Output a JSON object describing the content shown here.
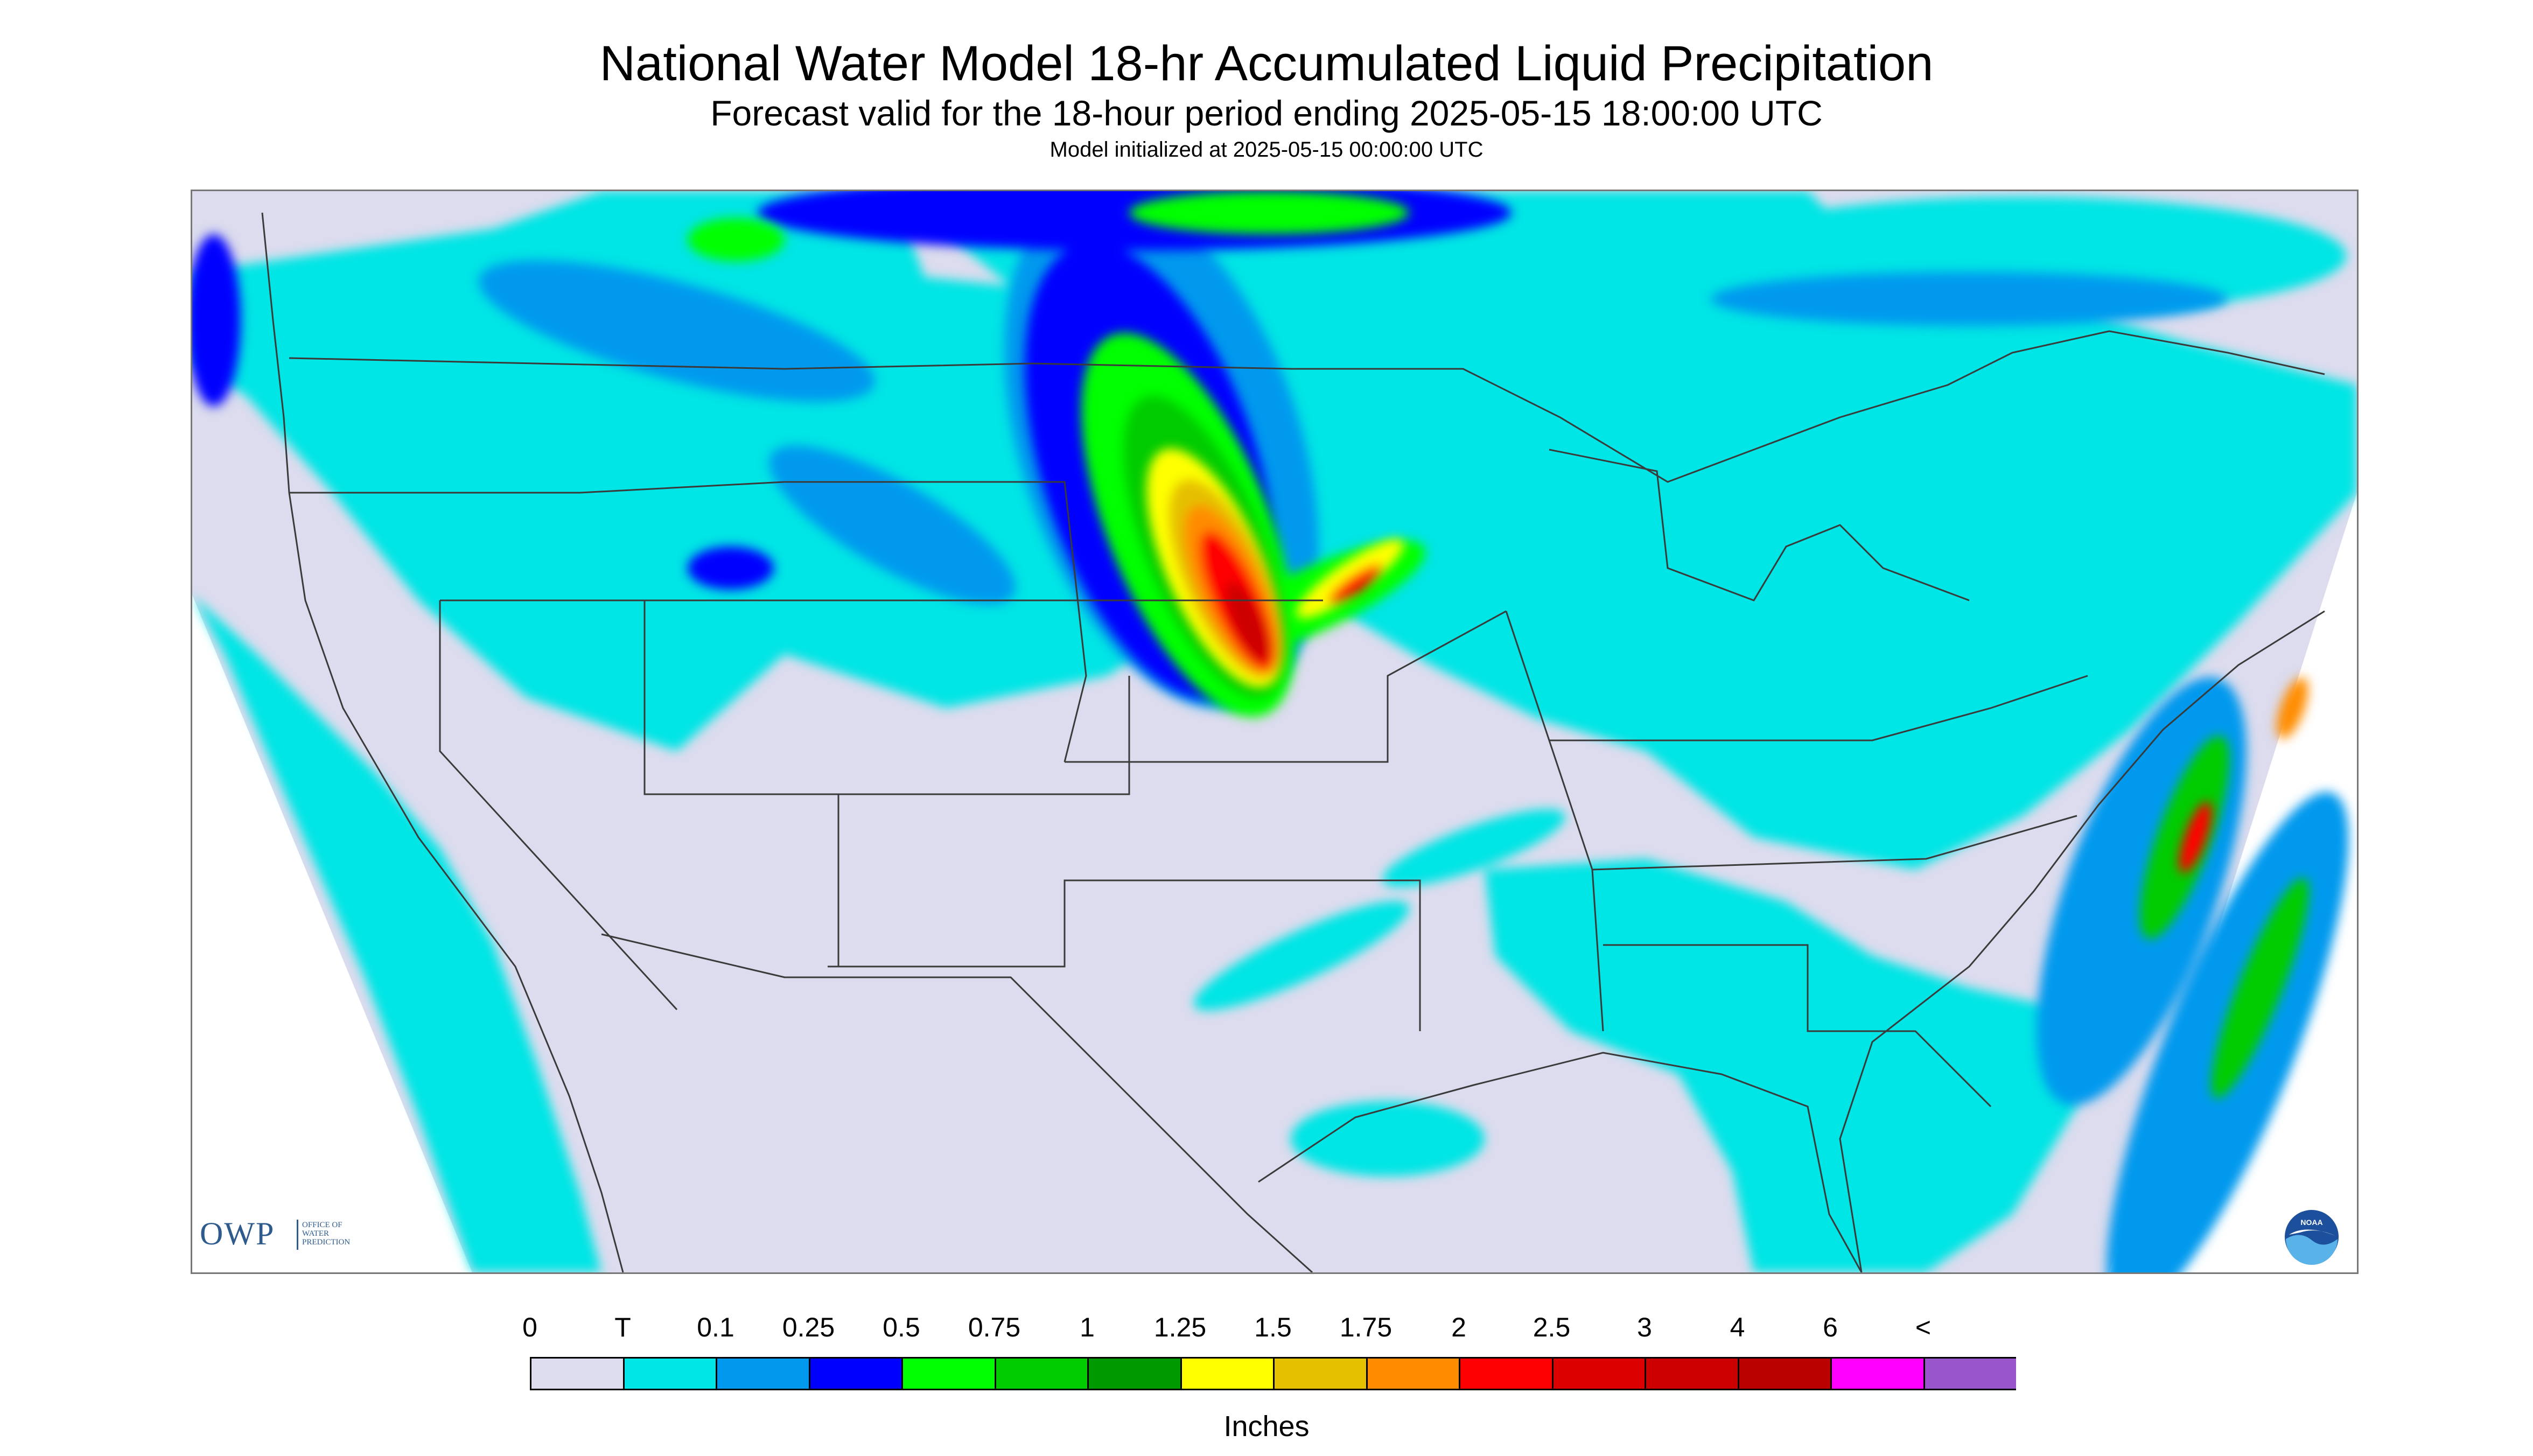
{
  "header": {
    "title": "National Water Model 18-hr Accumulated Liquid Precipitation",
    "subtitle": "Forecast valid for the 18-hour period ending 2025-05-15 18:00:00 UTC",
    "init": "Model initialized at 2025-05-15 00:00:00 UTC"
  },
  "map": {
    "background_color": "#dcdcee",
    "boundary_color": "#3a3a3a",
    "features": [
      {
        "name": "pacific-coast-band",
        "level": "T"
      },
      {
        "name": "northern-plains-storm-core",
        "level": "2.5"
      },
      {
        "name": "canada-border-band",
        "level": "0.5"
      },
      {
        "name": "east-coast-band",
        "level": "1.25"
      },
      {
        "name": "atlantic-offshore-band",
        "level": "1"
      }
    ]
  },
  "logos": {
    "owp": {
      "letters": "OWP",
      "subtitle_lines": [
        "OFFICE OF",
        "WATER",
        "PREDICTION"
      ]
    },
    "noaa": {
      "text": "NOAA"
    }
  },
  "legend": {
    "labels": [
      "0",
      "T",
      "0.1",
      "0.25",
      "0.5",
      "0.75",
      "1",
      "1.25",
      "1.5",
      "1.75",
      "2",
      "2.5",
      "3",
      "4",
      "6",
      "<"
    ],
    "colors": [
      "#dcdcee",
      "#00e5e5",
      "#0099ee",
      "#0000ff",
      "#00ff00",
      "#00cc00",
      "#009900",
      "#ffff00",
      "#e5c000",
      "#ff8c00",
      "#ff0000",
      "#dd0000",
      "#cc0000",
      "#bb0000",
      "#ff00ff",
      "#9955cc"
    ],
    "units": "Inches"
  }
}
